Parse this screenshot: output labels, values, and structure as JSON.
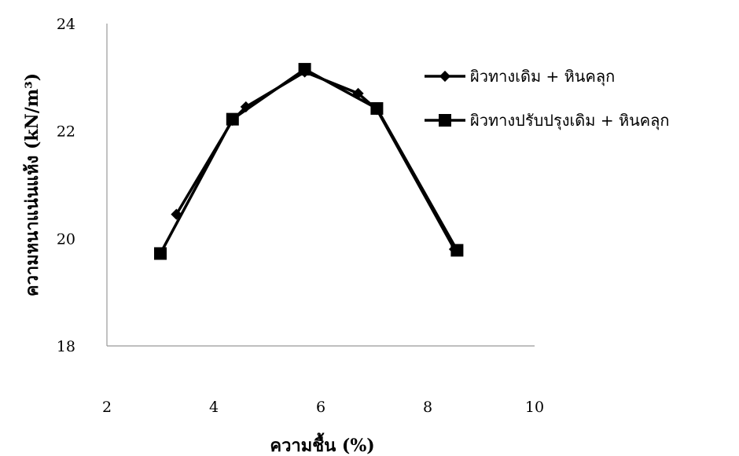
{
  "chart_data": {
    "type": "line",
    "title": "",
    "xlabel": "ความชื้น (%)",
    "ylabel": "ความหนาแน่นแห้ง (kN/m³)",
    "xlim": [
      2,
      10
    ],
    "ylim": [
      18,
      24
    ],
    "xticks": [
      2,
      4,
      6,
      8,
      10
    ],
    "yticks": [
      18,
      20,
      22,
      24
    ],
    "grid": false,
    "legend_position": "right",
    "series": [
      {
        "name": "ผิวทางเดิม + หินคลุก",
        "marker": "diamond",
        "color": "#000000",
        "points": [
          {
            "x": 3.3,
            "y": 20.45
          },
          {
            "x": 4.35,
            "y": 22.2
          },
          {
            "x": 4.6,
            "y": 22.45
          },
          {
            "x": 5.7,
            "y": 23.1
          },
          {
            "x": 6.7,
            "y": 22.7
          },
          {
            "x": 7.05,
            "y": 22.4
          },
          {
            "x": 8.5,
            "y": 19.8
          }
        ]
      },
      {
        "name": "ผิวทางปรับปรุงเดิม + หินคลุก",
        "marker": "square",
        "color": "#000000",
        "points": [
          {
            "x": 3.0,
            "y": 19.72
          },
          {
            "x": 4.35,
            "y": 22.22
          },
          {
            "x": 5.7,
            "y": 23.15
          },
          {
            "x": 7.05,
            "y": 22.42
          },
          {
            "x": 8.55,
            "y": 19.78
          }
        ]
      }
    ]
  }
}
